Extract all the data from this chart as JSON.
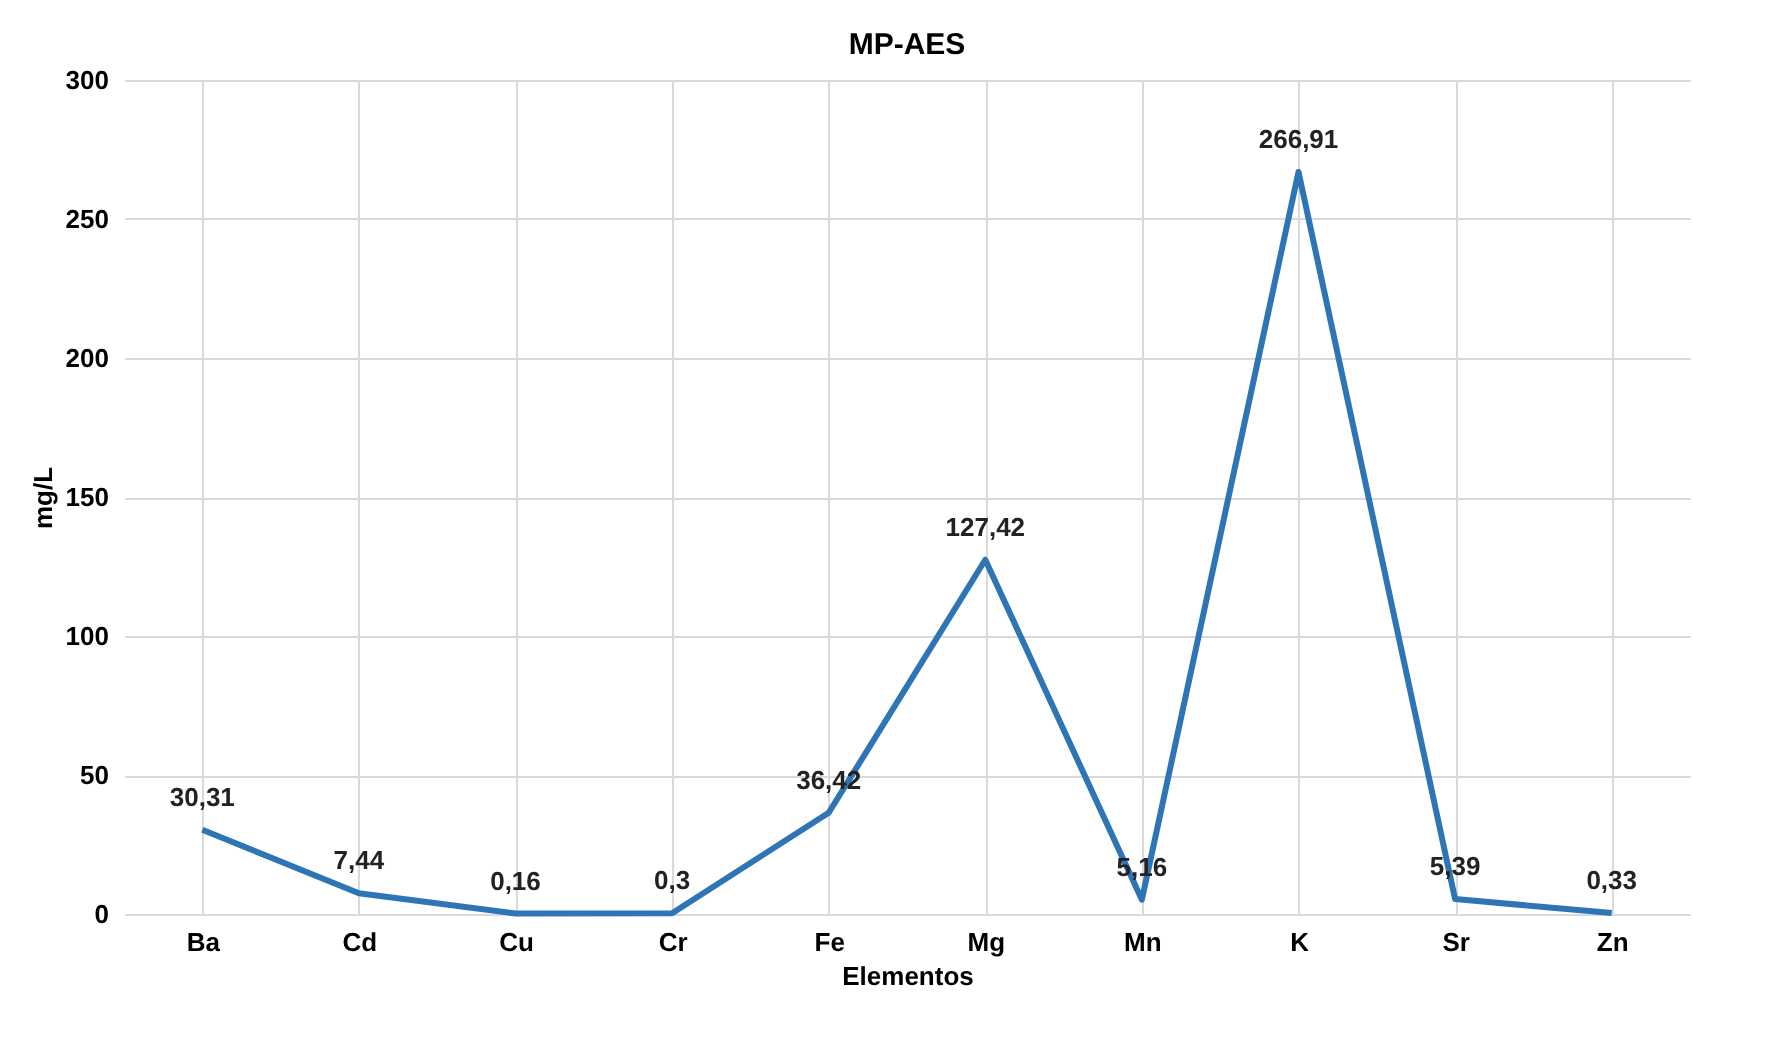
{
  "chart_data": {
    "type": "line",
    "title": "MP-AES",
    "xlabel": "Elementos",
    "ylabel": "mg/L",
    "categories": [
      "Ba",
      "Cd",
      "Cu",
      "Cr",
      "Fe",
      "Mg",
      "Mn",
      "K",
      "Sr",
      "Zn"
    ],
    "series": [
      {
        "color": "#2e75b6",
        "values": [
          30.31,
          7.44,
          0.16,
          0.3,
          36.42,
          127.42,
          5.16,
          266.91,
          5.39,
          0.33
        ],
        "value_labels": [
          "30,31",
          "7,44",
          "0,16",
          "0,3",
          "36,42",
          "127,42",
          "5,16",
          "266,91",
          "5,39",
          "0,33"
        ]
      }
    ],
    "ylim": [
      0,
      300
    ],
    "yticks": [
      0,
      50,
      100,
      150,
      200,
      250,
      300
    ],
    "grid": true,
    "marker": "none",
    "line_style": "solid"
  }
}
